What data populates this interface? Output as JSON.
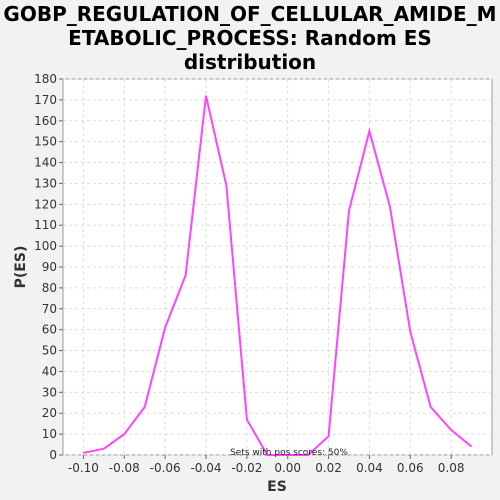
{
  "chart_data": {
    "type": "line",
    "title_lines": [
      "GOBP_REGULATION_OF_CELLULAR_AMIDE_M",
      "ETABOLIC_PROCESS: Random ES",
      "distribution"
    ],
    "xlabel": "ES",
    "ylabel": "P(ES)",
    "xlim": [
      -0.11,
      0.1
    ],
    "ylim": [
      0,
      180
    ],
    "x_ticks": [
      -0.1,
      -0.08,
      -0.06,
      -0.04,
      -0.02,
      0.0,
      0.02,
      0.04,
      0.06,
      0.08
    ],
    "x_tick_labels": [
      "-0.10",
      "-0.08",
      "-0.06",
      "-0.04",
      "-0.02",
      "0.00",
      "0.02",
      "0.04",
      "0.06",
      "0.08"
    ],
    "y_ticks": [
      0,
      10,
      20,
      30,
      40,
      50,
      60,
      70,
      80,
      90,
      100,
      110,
      120,
      130,
      140,
      150,
      160,
      170,
      180
    ],
    "grid": true,
    "annotation": "Sets with pos scores: 50%",
    "series_color": "#ff44ff",
    "series": [
      {
        "x": [
          -0.1,
          -0.09,
          -0.08,
          -0.07,
          -0.06,
          -0.05,
          -0.04,
          -0.03,
          -0.02,
          -0.01,
          0.0,
          0.01,
          0.02,
          0.03,
          0.04,
          0.05,
          0.06,
          0.07,
          0.08,
          0.09
        ],
        "y": [
          1,
          3,
          10,
          23,
          61,
          86,
          172,
          129,
          17,
          0,
          0,
          0,
          9,
          117,
          155,
          119,
          59,
          23,
          12,
          4
        ]
      }
    ]
  }
}
